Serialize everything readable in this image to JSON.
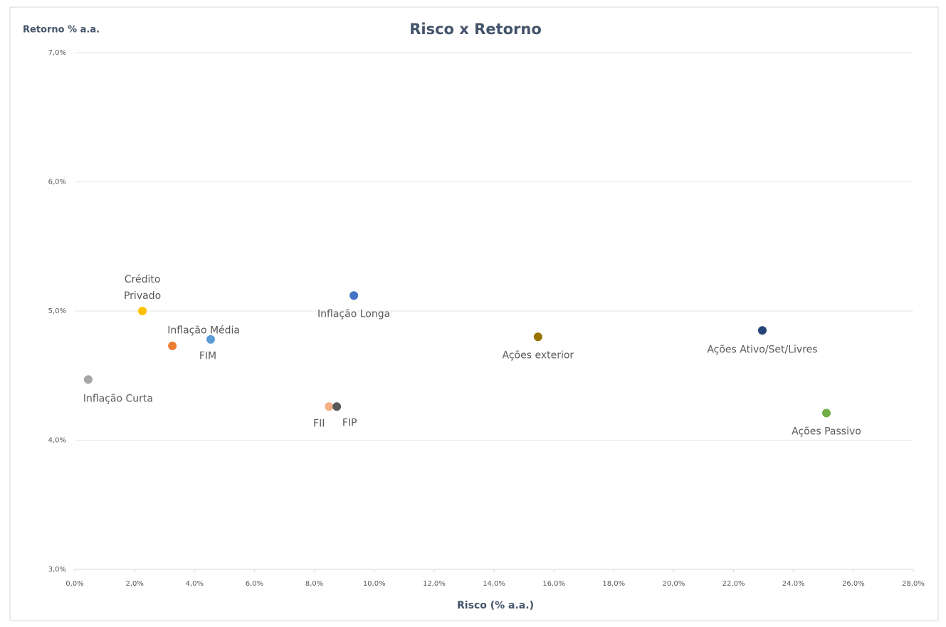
{
  "chart_data": {
    "type": "scatter",
    "title": "Risco x Retorno",
    "y_label": "Retorno % a.a.",
    "x_label": "Risco (% a.a.)",
    "xlim": [
      0,
      28
    ],
    "ylim": [
      3,
      7
    ],
    "xticks": [
      {
        "value": 0,
        "label": "0,0%"
      },
      {
        "value": 2,
        "label": "2,0%"
      },
      {
        "value": 4,
        "label": "4,0%"
      },
      {
        "value": 6,
        "label": "6,0%"
      },
      {
        "value": 8,
        "label": "8,0%"
      },
      {
        "value": 10,
        "label": "10,0%"
      },
      {
        "value": 12,
        "label": "12,0%"
      },
      {
        "value": 14,
        "label": "14,0%"
      },
      {
        "value": 16,
        "label": "16,0%"
      },
      {
        "value": 18,
        "label": "18,0%"
      },
      {
        "value": 20,
        "label": "20,0%"
      },
      {
        "value": 22,
        "label": "22,0%"
      },
      {
        "value": 24,
        "label": "24,0%"
      },
      {
        "value": 26,
        "label": "26,0%"
      },
      {
        "value": 28,
        "label": "28,0%"
      }
    ],
    "yticks": [
      {
        "value": 3,
        "label": "3,0%"
      },
      {
        "value": 4,
        "label": "4,0%"
      },
      {
        "value": 5,
        "label": "5,0%"
      },
      {
        "value": 6,
        "label": "6,0%"
      },
      {
        "value": 7,
        "label": "7,0%"
      }
    ],
    "grid": true,
    "series": [
      {
        "name": "Inflação Curta",
        "color": "#a5a5a5",
        "x": [
          0.45
        ],
        "values": [
          4.47
        ]
      },
      {
        "name": "Crédito Privado",
        "color": "#ffc000",
        "x": [
          2.26
        ],
        "values": [
          5.0
        ]
      },
      {
        "name": "Inflação Média",
        "color": "#ed7d31",
        "x": [
          3.26
        ],
        "values": [
          4.73
        ]
      },
      {
        "name": "FIM",
        "color": "#5b9bd5",
        "x": [
          4.54
        ],
        "values": [
          4.78
        ]
      },
      {
        "name": "Inflação Longa",
        "color": "#4472c4",
        "x": [
          9.32
        ],
        "values": [
          5.12
        ]
      },
      {
        "name": "FII",
        "color": "#f4b183",
        "x": [
          8.49
        ],
        "values": [
          4.26
        ]
      },
      {
        "name": "FIP",
        "color": "#595959",
        "x": [
          8.75
        ],
        "values": [
          4.26
        ]
      },
      {
        "name": "Ações exterior",
        "color": "#997300",
        "x": [
          15.47
        ],
        "values": [
          4.8
        ]
      },
      {
        "name": "Ações Ativo/Set/Livres",
        "color": "#264478",
        "x": [
          22.96
        ],
        "values": [
          4.85
        ]
      },
      {
        "name": "Ações Passivo",
        "color": "#70ad47",
        "x": [
          25.1
        ],
        "values": [
          4.21
        ]
      }
    ]
  }
}
